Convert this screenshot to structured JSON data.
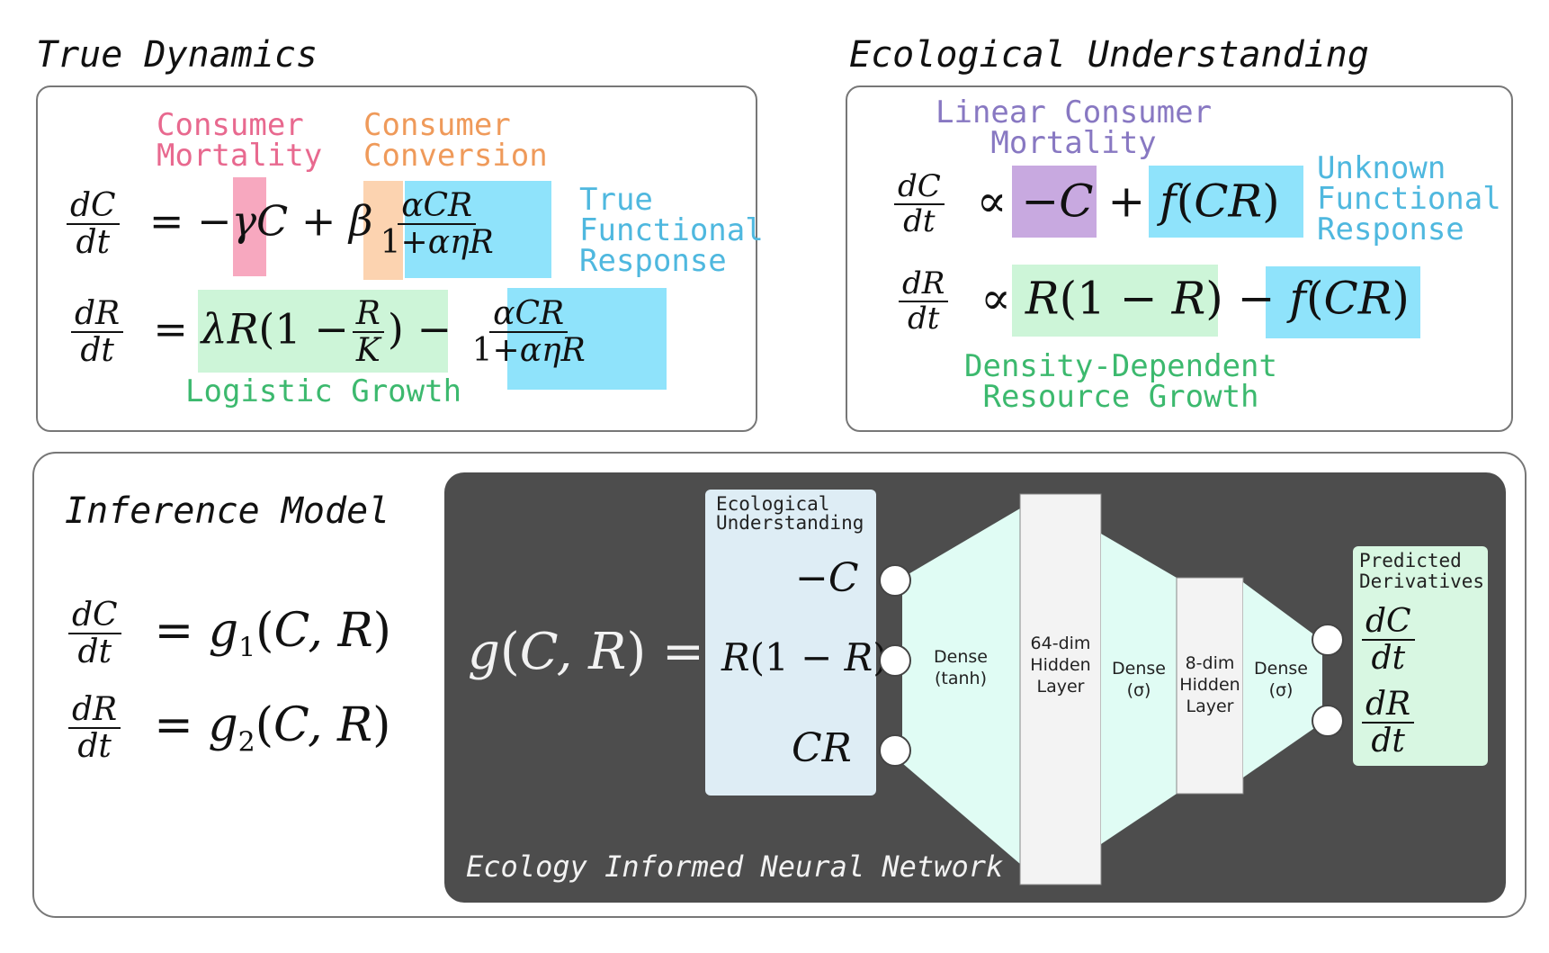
{
  "true_dynamics": {
    "title": "True Dynamics",
    "labels": {
      "consumer_mortality": "Consumer\nMortality",
      "consumer_conversion": "Consumer\nConversion",
      "true_functional_response": "True\nFunctional\nResponse",
      "logistic_growth": "Logistic Growth"
    },
    "colors": {
      "mortality": "#f7a8bf",
      "conversion": "#fcd3b0",
      "functional": "#8fe3fb",
      "growth": "#cdf5d8",
      "mortality_text": "#e8698f",
      "conversion_text": "#ef9a5a",
      "functional_text": "#4fb8df",
      "growth_text": "#3cb96e"
    }
  },
  "ecological_understanding": {
    "title": "Ecological Understanding",
    "labels": {
      "linear_consumer_mortality": "Linear Consumer\nMortality",
      "unknown_functional_response": "Unknown\nFunctional\nResponse",
      "density_dependent_growth": "Density-Dependent\nResource Growth"
    },
    "colors": {
      "mortality": "#c8a9e0",
      "mortality_text": "#8878c2"
    }
  },
  "inference_model": {
    "title": "Inference Model"
  },
  "network": {
    "caption": "Ecology Informed Neural Network",
    "input_box_title": "Ecological\nUnderstanding",
    "output_box_title": "Predicted\nDerivatives",
    "layers": {
      "dense1": "Dense\n(tanh)",
      "hidden64": "64-dim\nHidden\nLayer",
      "dense2": "Dense\n(σ)",
      "hidden8": "8-dim\nHidden\nLayer",
      "dense3": "Dense\n(σ)"
    },
    "colors": {
      "background": "#4d4d4d",
      "input_box": "#deedf5",
      "output_box": "#d8f7e2",
      "dense": "#e0fcf4",
      "hidden": "#f3f3f3"
    }
  }
}
